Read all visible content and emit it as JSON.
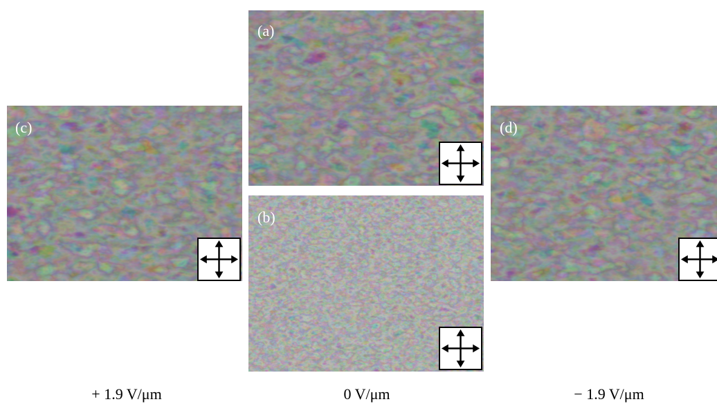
{
  "panels": [
    {
      "label": "(a)"
    },
    {
      "label": "(b)"
    },
    {
      "label": "(c)"
    },
    {
      "label": "(d)"
    }
  ],
  "captions": [
    "+ 1.9 V/μm",
    "0 V/μm",
    "− 1.9 V/μm"
  ]
}
